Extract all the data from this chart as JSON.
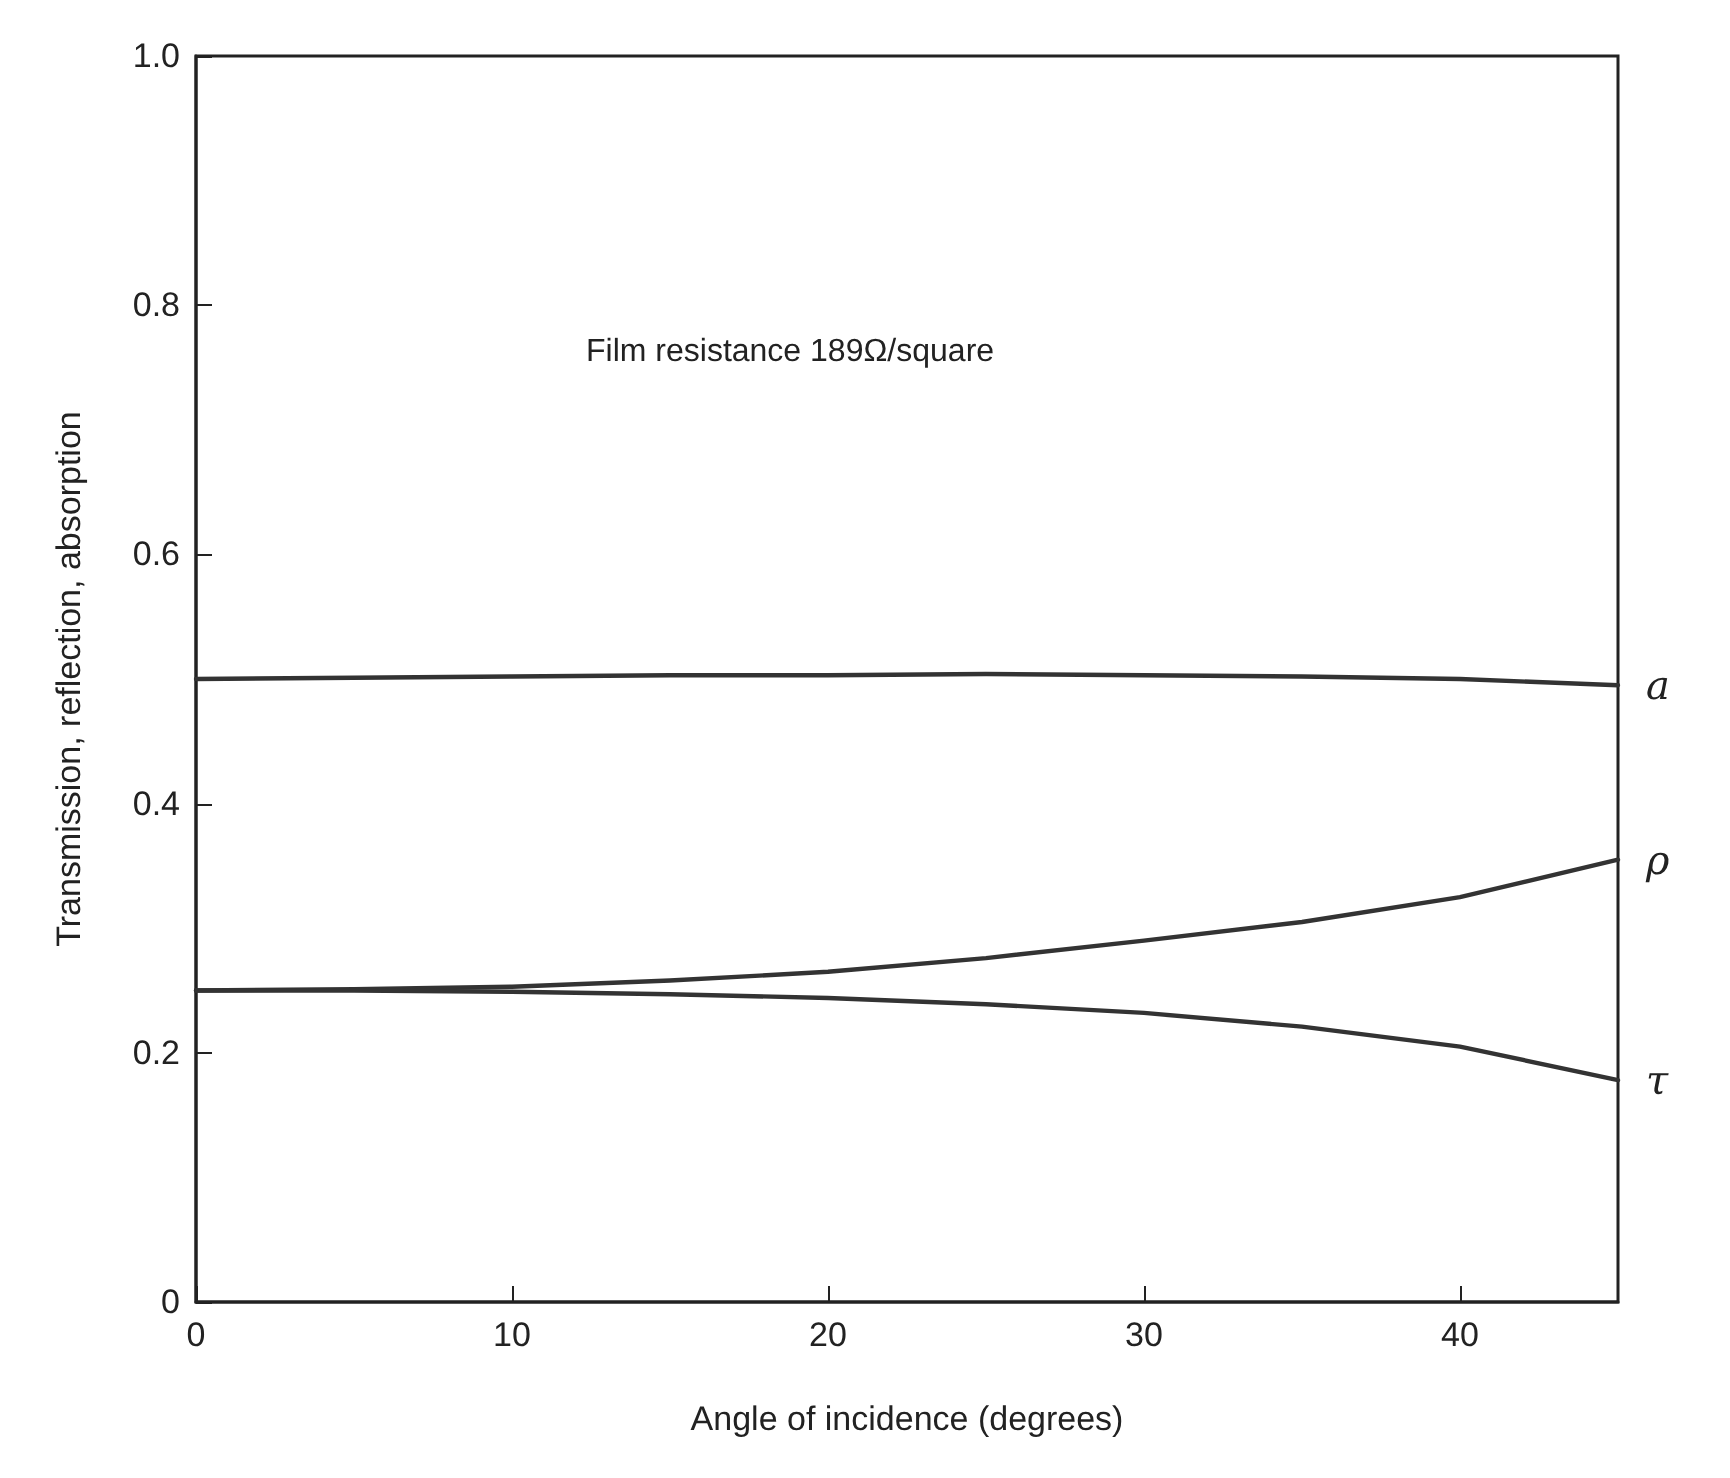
{
  "chart_data": {
    "type": "line",
    "xlabel": "Angle of incidence (degrees)",
    "ylabel": "Transmission, reflection, absorption",
    "annotations": [
      "Film resistance 189Ω/square"
    ],
    "x": [
      0,
      5,
      10,
      15,
      20,
      25,
      30,
      35,
      40,
      45
    ],
    "series": [
      {
        "name": "a",
        "color": "#333333",
        "values": [
          0.5,
          0.501,
          0.502,
          0.503,
          0.503,
          0.504,
          0.503,
          0.502,
          0.5,
          0.495
        ]
      },
      {
        "name": "ρ",
        "color": "#333333",
        "values": [
          0.25,
          0.251,
          0.253,
          0.258,
          0.265,
          0.276,
          0.29,
          0.305,
          0.325,
          0.355
        ]
      },
      {
        "name": "τ",
        "color": "#333333",
        "values": [
          0.25,
          0.25,
          0.249,
          0.247,
          0.244,
          0.239,
          0.232,
          0.221,
          0.205,
          0.178
        ]
      }
    ],
    "xlim": [
      0,
      45
    ],
    "xticks": [
      0,
      10,
      20,
      30,
      40
    ],
    "ylim": [
      0,
      1
    ],
    "yticks": [
      0,
      0.2,
      0.4,
      0.6,
      0.8,
      {
        "value": 1,
        "label": "1.0"
      }
    ],
    "grid": false,
    "legend": false,
    "marker": "none",
    "line_style": "solid"
  }
}
